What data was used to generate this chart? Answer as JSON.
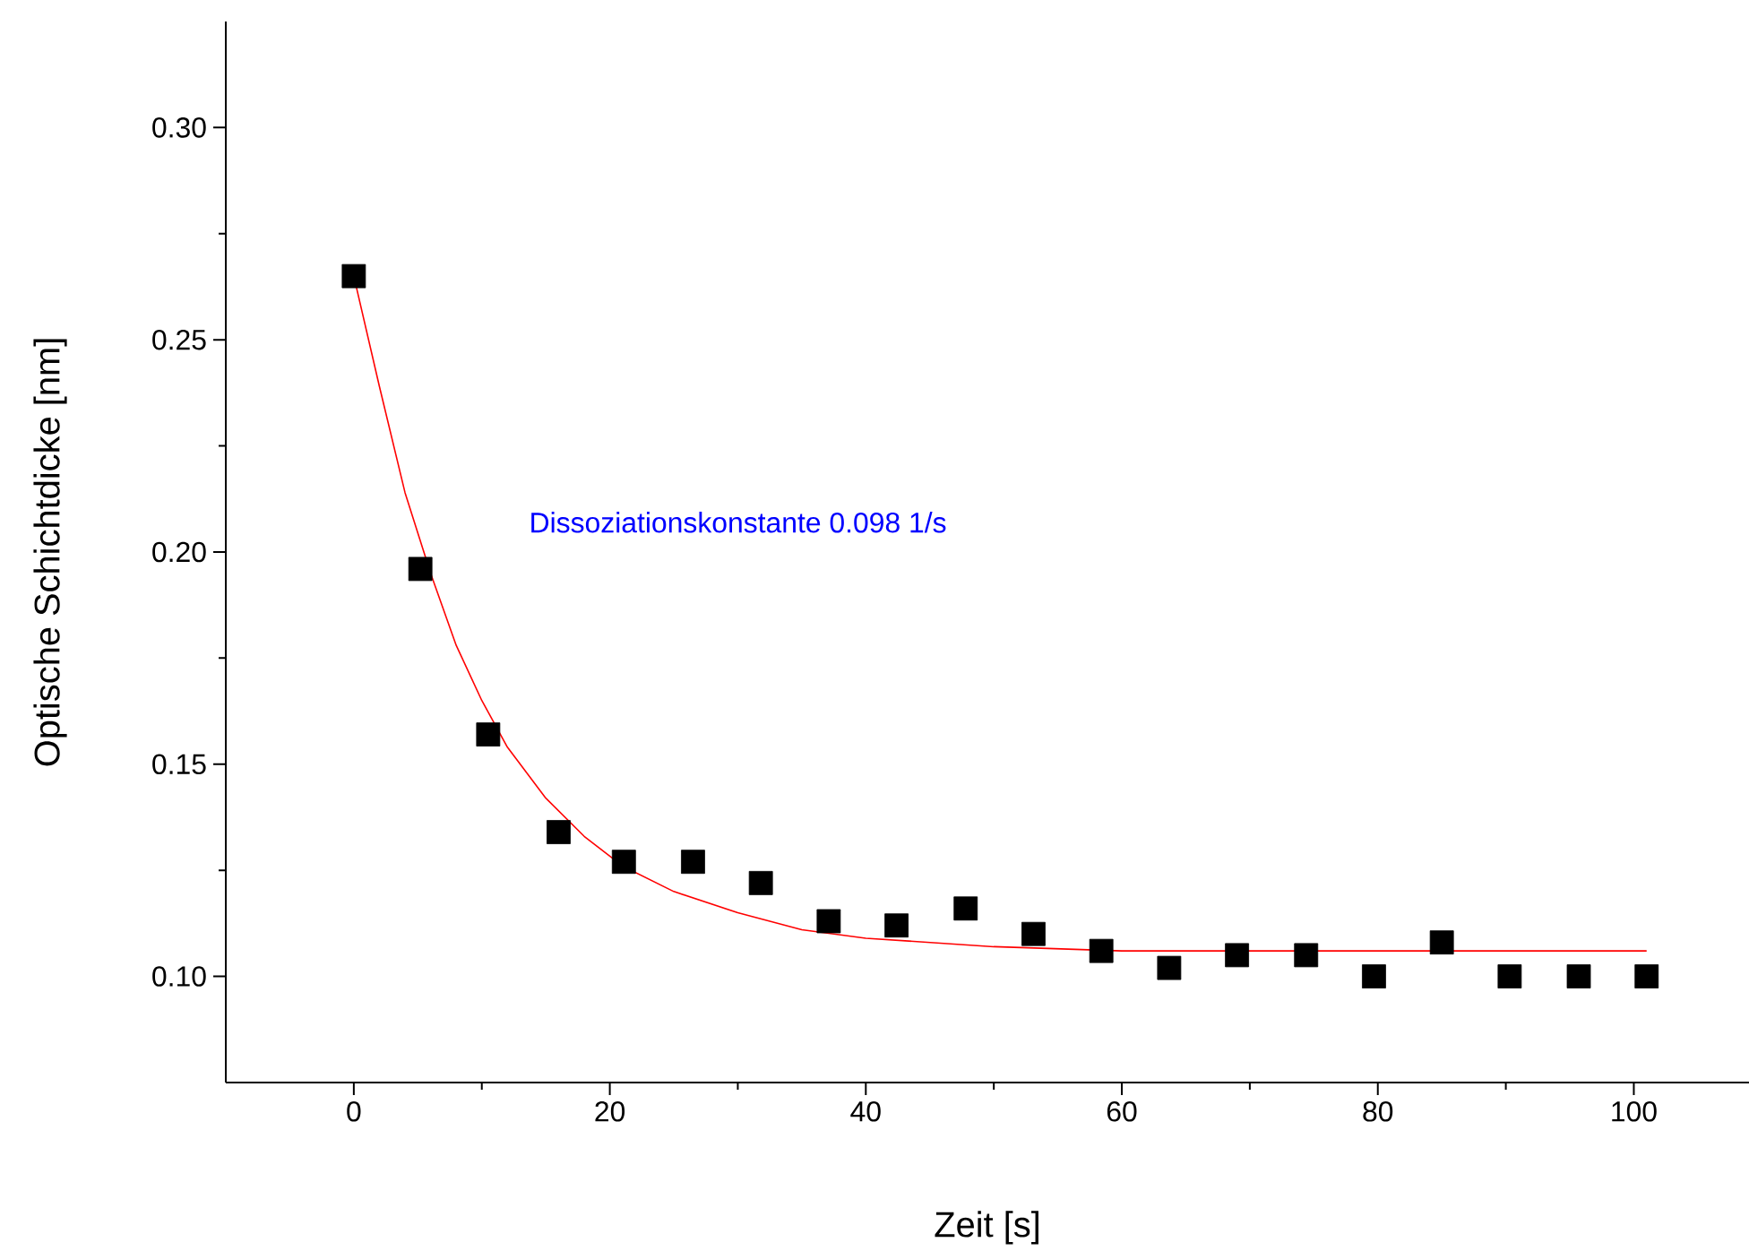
{
  "chart_data": {
    "type": "scatter",
    "xlabel": "Zeit [s]",
    "ylabel": "Optische Schichtdicke [nm]",
    "xlim": [
      -10,
      109
    ],
    "ylim": [
      0.075,
      0.325
    ],
    "xticks": [
      0,
      20,
      40,
      60,
      80,
      100
    ],
    "yticks": [
      {
        "value": 0.1,
        "label": "0.10"
      },
      {
        "value": 0.15,
        "label": "0.15"
      },
      {
        "value": 0.2,
        "label": "0.20"
      },
      {
        "value": 0.25,
        "label": "0.25"
      },
      {
        "value": 0.3,
        "label": "0.30"
      }
    ],
    "marker": "square",
    "annotations": [
      "Dissoziationskonstante 0.098 1/s"
    ],
    "series": [
      {
        "color": "#000000",
        "x": [
          0,
          5.2,
          10.5,
          16.0,
          21.1,
          26.5,
          31.8,
          37.1,
          42.4,
          47.8,
          53.1,
          58.4,
          63.7,
          69.0,
          74.4,
          79.7,
          85.0,
          90.3,
          95.7,
          101.0
        ],
        "values": [
          0.265,
          0.196,
          0.157,
          0.134,
          0.127,
          0.127,
          0.122,
          0.113,
          0.112,
          0.116,
          0.11,
          0.106,
          0.102,
          0.105,
          0.105,
          0.1,
          0.108,
          0.1,
          0.1,
          0.1
        ]
      },
      {
        "type": "line",
        "color": "#ff0000",
        "marker": "none",
        "x": [
          0,
          2,
          4,
          6,
          8,
          10,
          12,
          15,
          18,
          21,
          25,
          30,
          35,
          40,
          50,
          60,
          80,
          101
        ],
        "values": [
          0.265,
          0.239,
          0.214,
          0.195,
          0.178,
          0.165,
          0.154,
          0.142,
          0.133,
          0.126,
          0.12,
          0.115,
          0.111,
          0.109,
          0.107,
          0.106,
          0.106,
          0.106
        ]
      }
    ]
  }
}
